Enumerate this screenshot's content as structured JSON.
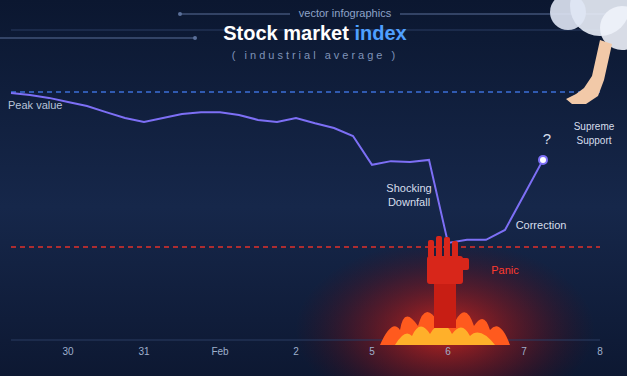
{
  "chart_data": {
    "type": "line",
    "supertitle": "vector infographics",
    "title": "Stock market index",
    "subtitle": "( industrial average )",
    "categories": [
      null,
      null,
      null,
      "30",
      null,
      null,
      null,
      "31",
      null,
      null,
      null,
      "Feb",
      null,
      null,
      null,
      "2",
      null,
      null,
      null,
      "5",
      null,
      null,
      null,
      "6",
      null,
      null,
      null,
      "7",
      null,
      null,
      null,
      "8"
    ],
    "values": [
      79.7,
      79.0,
      78.1,
      76.8,
      75.5,
      73.5,
      71.6,
      70.3,
      71.6,
      72.9,
      73.5,
      73.5,
      72.6,
      71.0,
      70.3,
      71.6,
      69.9,
      68.4,
      65.8,
      56.5,
      57.7,
      57.4,
      58.1,
      31.3,
      32.3,
      32.3,
      35.5,
      46.8,
      58.1,
      null,
      null,
      null
    ],
    "color": "#7d6ff5",
    "ylim": [
      0,
      100
    ],
    "yticks": [
      0,
      10,
      20,
      30,
      40,
      50,
      60,
      70,
      80,
      90,
      100
    ],
    "grid": true,
    "tick_labels": "x",
    "marker": "end",
    "reference_lines": [
      {
        "label": "Peak value",
        "value": 80,
        "color": "#3b6fd8"
      },
      {
        "value": 30,
        "color": "#e0302a"
      }
    ],
    "annotations": [
      {
        "text": "Shocking Downfall",
        "color": "#d6deec"
      },
      {
        "text": "Panic",
        "color": "#ff3b2f"
      },
      {
        "text": "Correction",
        "color": "#d6deec"
      },
      {
        "text": "?",
        "color": "#d6deec"
      },
      {
        "text": "Supreme Support",
        "color": "#d6deec"
      }
    ]
  }
}
